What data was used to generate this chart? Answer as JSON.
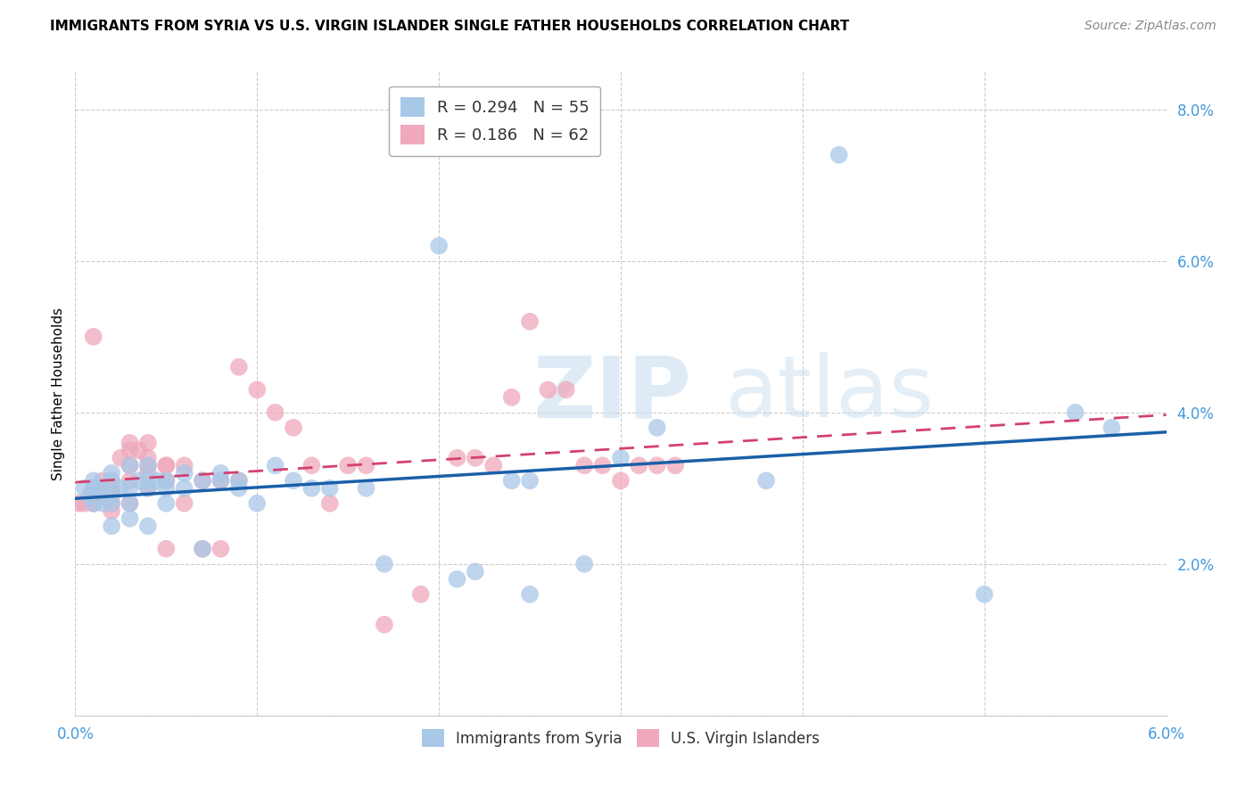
{
  "title": "IMMIGRANTS FROM SYRIA VS U.S. VIRGIN ISLANDER SINGLE FATHER HOUSEHOLDS CORRELATION CHART",
  "source": "Source: ZipAtlas.com",
  "ylabel": "Single Father Households",
  "xlim": [
    0.0,
    0.06
  ],
  "ylim": [
    0.0,
    0.085
  ],
  "yticks": [
    0.0,
    0.02,
    0.04,
    0.06,
    0.08
  ],
  "ytick_labels": [
    "",
    "2.0%",
    "4.0%",
    "6.0%",
    "8.0%"
  ],
  "xtick_labels": [
    "0.0%",
    "",
    "",
    "",
    "",
    "",
    "6.0%"
  ],
  "xticks": [
    0.0,
    0.01,
    0.02,
    0.03,
    0.04,
    0.05,
    0.06
  ],
  "blue_R": 0.294,
  "blue_N": 55,
  "pink_R": 0.186,
  "pink_N": 62,
  "blue_color": "#a8c8e8",
  "pink_color": "#f0a8bc",
  "blue_line_color": "#1a5fa8",
  "pink_line_color": "#d44070",
  "legend_R_color": "#44aaee",
  "legend_N_color": "#44cc44",
  "axis_tick_color": "#4499dd",
  "blue_x": [
    0.0005,
    0.0008,
    0.001,
    0.001,
    0.0012,
    0.0015,
    0.0015,
    0.002,
    0.002,
    0.002,
    0.002,
    0.002,
    0.0025,
    0.003,
    0.003,
    0.003,
    0.003,
    0.0035,
    0.004,
    0.004,
    0.004,
    0.004,
    0.0045,
    0.005,
    0.005,
    0.005,
    0.006,
    0.006,
    0.007,
    0.007,
    0.008,
    0.008,
    0.009,
    0.009,
    0.01,
    0.011,
    0.012,
    0.013,
    0.014,
    0.016,
    0.017,
    0.02,
    0.022,
    0.024,
    0.025,
    0.028,
    0.03,
    0.032,
    0.038,
    0.042,
    0.021,
    0.025,
    0.05,
    0.055,
    0.057
  ],
  "blue_y": [
    0.03,
    0.029,
    0.031,
    0.028,
    0.03,
    0.03,
    0.028,
    0.032,
    0.031,
    0.029,
    0.028,
    0.025,
    0.03,
    0.033,
    0.03,
    0.028,
    0.026,
    0.031,
    0.033,
    0.031,
    0.03,
    0.025,
    0.031,
    0.031,
    0.03,
    0.028,
    0.032,
    0.03,
    0.031,
    0.022,
    0.032,
    0.031,
    0.031,
    0.03,
    0.028,
    0.033,
    0.031,
    0.03,
    0.03,
    0.03,
    0.02,
    0.062,
    0.019,
    0.031,
    0.016,
    0.02,
    0.034,
    0.038,
    0.031,
    0.074,
    0.018,
    0.031,
    0.016,
    0.04,
    0.038
  ],
  "pink_x": [
    0.0002,
    0.0005,
    0.001,
    0.001,
    0.001,
    0.001,
    0.001,
    0.0015,
    0.0015,
    0.0015,
    0.002,
    0.002,
    0.002,
    0.002,
    0.002,
    0.002,
    0.0025,
    0.003,
    0.003,
    0.003,
    0.003,
    0.003,
    0.0035,
    0.004,
    0.004,
    0.004,
    0.004,
    0.004,
    0.005,
    0.005,
    0.005,
    0.005,
    0.006,
    0.006,
    0.007,
    0.007,
    0.008,
    0.008,
    0.009,
    0.009,
    0.01,
    0.011,
    0.012,
    0.013,
    0.014,
    0.015,
    0.016,
    0.017,
    0.019,
    0.021,
    0.022,
    0.023,
    0.024,
    0.025,
    0.026,
    0.027,
    0.028,
    0.029,
    0.03,
    0.031,
    0.032,
    0.033
  ],
  "pink_y": [
    0.028,
    0.028,
    0.03,
    0.03,
    0.028,
    0.028,
    0.05,
    0.031,
    0.03,
    0.029,
    0.031,
    0.03,
    0.03,
    0.03,
    0.028,
    0.027,
    0.034,
    0.036,
    0.035,
    0.033,
    0.031,
    0.028,
    0.035,
    0.036,
    0.034,
    0.033,
    0.032,
    0.03,
    0.033,
    0.033,
    0.031,
    0.022,
    0.033,
    0.028,
    0.031,
    0.022,
    0.031,
    0.022,
    0.031,
    0.046,
    0.043,
    0.04,
    0.038,
    0.033,
    0.028,
    0.033,
    0.033,
    0.012,
    0.016,
    0.034,
    0.034,
    0.033,
    0.042,
    0.052,
    0.043,
    0.043,
    0.033,
    0.033,
    0.031,
    0.033,
    0.033,
    0.033
  ]
}
